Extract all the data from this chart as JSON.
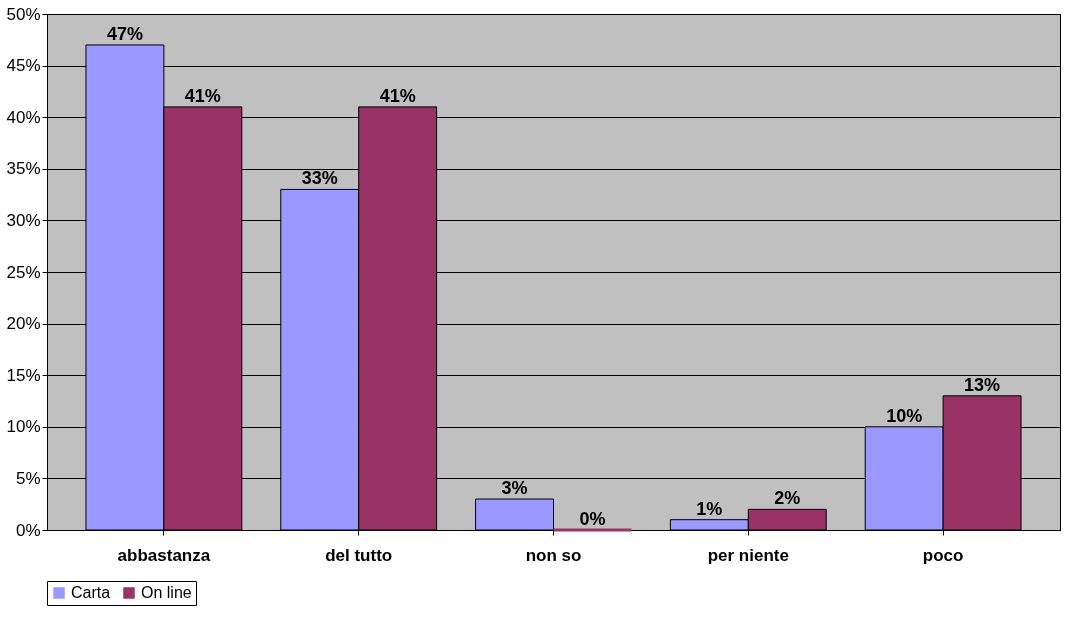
{
  "chart_data": {
    "type": "bar",
    "categories": [
      "abbastanza",
      "del tutto",
      "non so",
      "per niente",
      "poco"
    ],
    "series": [
      {
        "name": "Carta",
        "color": "#9999ff",
        "values": [
          47,
          33,
          3,
          1,
          10
        ],
        "value_labels": [
          "47%",
          "33%",
          "3%",
          "1%",
          "10%"
        ]
      },
      {
        "name": "On line",
        "color": "#993366",
        "values": [
          41,
          41,
          0,
          2,
          13
        ],
        "value_labels": [
          "41%",
          "41%",
          "0%",
          "2%",
          "13%"
        ]
      }
    ],
    "ylim": [
      0,
      50
    ],
    "yticks": [
      {
        "value": 0,
        "label": "0%"
      },
      {
        "value": 5,
        "label": "5%"
      },
      {
        "value": 10,
        "label": "10%"
      },
      {
        "value": 15,
        "label": "15%"
      },
      {
        "value": 20,
        "label": "20%"
      },
      {
        "value": 25,
        "label": "25%"
      },
      {
        "value": 30,
        "label": "30%"
      },
      {
        "value": 35,
        "label": "35%"
      },
      {
        "value": 40,
        "label": "40%"
      },
      {
        "value": 45,
        "label": "45%"
      },
      {
        "value": 50,
        "label": "50%"
      }
    ],
    "grid": "y",
    "legend": "bottom"
  }
}
